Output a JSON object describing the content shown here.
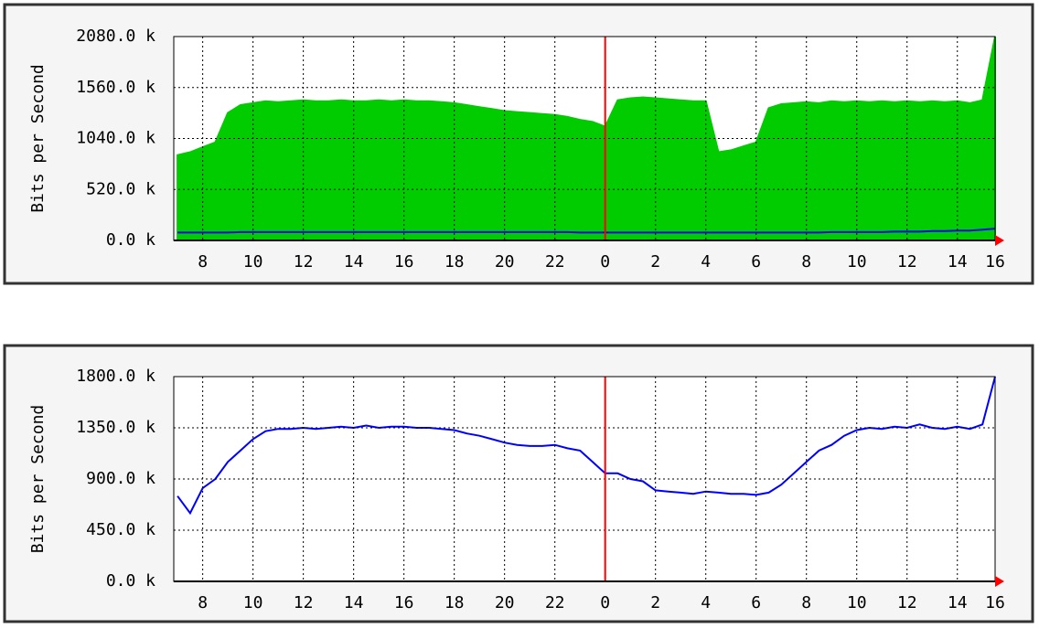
{
  "chart_data": [
    {
      "type": "area",
      "y_label": "Bits per Second",
      "grid": true,
      "marker_x": 24,
      "xlim": [
        6.85,
        39.5
      ],
      "ylim": [
        0,
        2080
      ],
      "xticks": [
        8,
        10,
        12,
        14,
        16,
        18,
        20,
        22,
        {
          "value": 24,
          "label": "0"
        },
        {
          "value": 26,
          "label": "2"
        },
        {
          "value": 28,
          "label": "4"
        },
        {
          "value": 30,
          "label": "6"
        },
        {
          "value": 32,
          "label": "8"
        },
        {
          "value": 34,
          "label": "10"
        },
        {
          "value": 36,
          "label": "12"
        },
        {
          "value": 38,
          "label": "14"
        },
        {
          "value": 40,
          "label": "16"
        }
      ],
      "yticks": [
        {
          "value": 0,
          "label": "0.0 k"
        },
        {
          "value": 520,
          "label": "520.0 k"
        },
        {
          "value": 1040,
          "label": "1040.0 k"
        },
        {
          "value": 1560,
          "label": "1560.0 k"
        },
        {
          "value": 2080,
          "label": "2080.0 k"
        }
      ],
      "x": [
        7,
        7.5,
        8,
        8.5,
        9,
        9.5,
        10,
        10.5,
        11,
        11.5,
        12,
        12.5,
        13,
        13.5,
        14,
        14.5,
        15,
        15.5,
        16,
        16.5,
        17,
        17.5,
        18,
        18.5,
        19,
        19.5,
        20,
        20.5,
        21,
        21.5,
        22,
        22.5,
        23,
        23.5,
        24,
        24.5,
        25,
        25.5,
        26,
        26.5,
        27,
        27.5,
        28,
        28.5,
        29,
        29.5,
        30,
        30.5,
        31,
        31.5,
        32,
        32.5,
        33,
        33.5,
        34,
        34.5,
        35,
        35.5,
        36,
        36.5,
        37,
        37.5,
        38,
        38.5,
        39,
        39.5
      ],
      "series": [
        {
          "color": "#00cc00",
          "style": "area",
          "values": [
            870,
            900,
            950,
            1000,
            1300,
            1380,
            1400,
            1420,
            1410,
            1420,
            1430,
            1420,
            1420,
            1430,
            1420,
            1420,
            1430,
            1420,
            1430,
            1420,
            1420,
            1410,
            1400,
            1380,
            1360,
            1340,
            1320,
            1310,
            1300,
            1290,
            1280,
            1260,
            1230,
            1210,
            1160,
            1430,
            1450,
            1460,
            1450,
            1440,
            1430,
            1420,
            1420,
            900,
            920,
            960,
            1000,
            1350,
            1390,
            1400,
            1410,
            1400,
            1420,
            1410,
            1420,
            1410,
            1420,
            1410,
            1420,
            1410,
            1420,
            1410,
            1420,
            1400,
            1430,
            2080
          ]
        },
        {
          "color": "#0000ff",
          "style": "line",
          "values": [
            80,
            80,
            80,
            80,
            80,
            85,
            85,
            85,
            85,
            85,
            85,
            85,
            85,
            85,
            85,
            85,
            85,
            85,
            85,
            85,
            85,
            85,
            85,
            85,
            85,
            85,
            85,
            85,
            85,
            85,
            85,
            85,
            80,
            80,
            80,
            80,
            80,
            80,
            80,
            80,
            80,
            80,
            80,
            80,
            80,
            80,
            80,
            80,
            80,
            80,
            80,
            80,
            85,
            85,
            85,
            85,
            85,
            90,
            90,
            90,
            95,
            95,
            100,
            100,
            110,
            120
          ]
        }
      ]
    },
    {
      "type": "area",
      "y_label": "Bits per Second",
      "grid": true,
      "marker_x": 24,
      "xlim": [
        6.85,
        39.5
      ],
      "ylim": [
        0,
        1800
      ],
      "xticks": [
        8,
        10,
        12,
        14,
        16,
        18,
        20,
        22,
        {
          "value": 24,
          "label": "0"
        },
        {
          "value": 26,
          "label": "2"
        },
        {
          "value": 28,
          "label": "4"
        },
        {
          "value": 30,
          "label": "6"
        },
        {
          "value": 32,
          "label": "8"
        },
        {
          "value": 34,
          "label": "10"
        },
        {
          "value": 36,
          "label": "12"
        },
        {
          "value": 38,
          "label": "14"
        },
        {
          "value": 40,
          "label": "16"
        }
      ],
      "yticks": [
        {
          "value": 0,
          "label": "0.0 k"
        },
        {
          "value": 450,
          "label": "450.0 k"
        },
        {
          "value": 900,
          "label": "900.0 k"
        },
        {
          "value": 1350,
          "label": "1350.0 k"
        },
        {
          "value": 1800,
          "label": "1800.0 k"
        }
      ],
      "x": [
        7,
        7.5,
        8,
        8.5,
        9,
        9.5,
        10,
        10.5,
        11,
        11.5,
        12,
        12.5,
        13,
        13.5,
        14,
        14.5,
        15,
        15.5,
        16,
        16.5,
        17,
        17.5,
        18,
        18.5,
        19,
        19.5,
        20,
        20.5,
        21,
        21.5,
        22,
        22.5,
        23,
        23.5,
        24,
        24.5,
        25,
        25.5,
        26,
        26.5,
        27,
        27.5,
        28,
        28.5,
        29,
        29.5,
        30,
        30.5,
        31,
        31.5,
        32,
        32.5,
        33,
        33.5,
        34,
        34.5,
        35,
        35.5,
        36,
        36.5,
        37,
        37.5,
        38,
        38.5,
        39,
        39.5
      ],
      "series": [
        {
          "color": "#00cc00",
          "style": "area",
          "values": [
            0,
            0,
            0,
            0,
            0,
            0,
            0,
            0,
            0,
            0,
            0,
            0,
            0,
            0,
            0,
            0,
            0,
            0,
            0,
            0,
            0,
            0,
            0,
            0,
            0,
            0,
            0,
            0,
            0,
            0,
            0,
            0,
            0,
            0,
            0,
            0,
            0,
            0,
            0,
            0,
            0,
            0,
            0,
            0,
            0,
            0,
            0,
            0,
            0,
            0,
            0,
            0,
            0,
            0,
            0,
            0,
            0,
            0,
            0,
            0,
            0,
            0,
            0,
            0,
            0,
            0
          ]
        },
        {
          "color": "#0000ff",
          "style": "line",
          "values": [
            750,
            600,
            820,
            900,
            1050,
            1150,
            1250,
            1320,
            1340,
            1340,
            1350,
            1340,
            1350,
            1360,
            1350,
            1370,
            1350,
            1360,
            1360,
            1350,
            1350,
            1340,
            1330,
            1300,
            1280,
            1250,
            1220,
            1200,
            1190,
            1190,
            1200,
            1170,
            1150,
            1050,
            950,
            950,
            900,
            880,
            800,
            790,
            780,
            770,
            790,
            780,
            770,
            770,
            760,
            780,
            850,
            950,
            1050,
            1150,
            1200,
            1280,
            1330,
            1350,
            1340,
            1360,
            1350,
            1380,
            1350,
            1340,
            1360,
            1340,
            1380,
            1800
          ]
        }
      ]
    }
  ]
}
